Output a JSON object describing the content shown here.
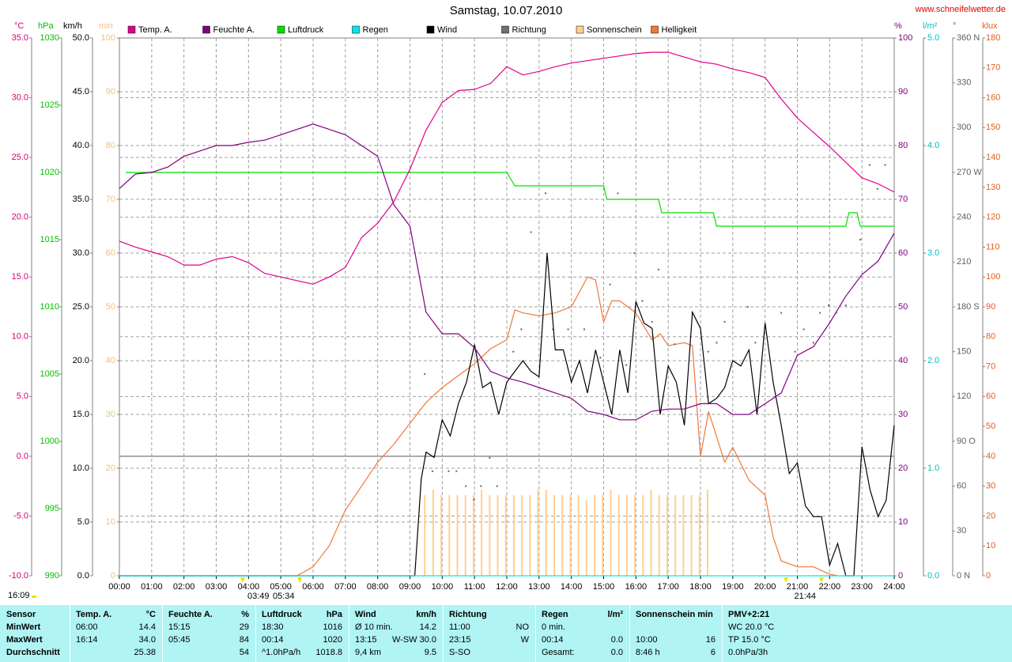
{
  "chart_data": {
    "type": "line",
    "title": "Samstag, 10.07.2010",
    "source": "www.schneifelwetter.de",
    "xlim": [
      0,
      24
    ],
    "xticks": [
      {
        "value": 0,
        "label": "00:00"
      },
      {
        "value": 1,
        "label": "01:00"
      },
      {
        "value": 2,
        "label": "02:00"
      },
      {
        "value": 3,
        "label": "03:00"
      },
      {
        "value": 4,
        "label": "04:00"
      },
      {
        "value": 5,
        "label": "05:00"
      },
      {
        "value": 6,
        "label": "06:00"
      },
      {
        "value": 7,
        "label": "07:00"
      },
      {
        "value": 8,
        "label": "08:00"
      },
      {
        "value": 9,
        "label": "09:00"
      },
      {
        "value": 10,
        "label": "10:00"
      },
      {
        "value": 11,
        "label": "11:00"
      },
      {
        "value": 12,
        "label": "12:00"
      },
      {
        "value": 13,
        "label": "13:00"
      },
      {
        "value": 14,
        "label": "14:00"
      },
      {
        "value": 15,
        "label": "15:00"
      },
      {
        "value": 16,
        "label": "16:00"
      },
      {
        "value": 17,
        "label": "17:00"
      },
      {
        "value": 18,
        "label": "18:00"
      },
      {
        "value": 19,
        "label": "19:00"
      },
      {
        "value": 20,
        "label": "20:00"
      },
      {
        "value": 21,
        "label": "21:00"
      },
      {
        "value": 22,
        "label": "22:00"
      },
      {
        "value": 23,
        "label": "23:00"
      },
      {
        "value": 24,
        "label": "24:00"
      }
    ],
    "grid": [
      "km/h",
      "°C"
    ],
    "axes": [
      {
        "name": "°C",
        "color": "#d4007a",
        "lim": [
          -10,
          35
        ],
        "ticks": [
          {
            "value": -10,
            "label": "-10.0"
          },
          {
            "value": -5,
            "label": "-5.0"
          },
          {
            "value": 0,
            "label": "0.0"
          },
          {
            "value": 5,
            "label": "5.0"
          },
          {
            "value": 10,
            "label": "10.0"
          },
          {
            "value": 15,
            "label": "15.0"
          },
          {
            "value": 20,
            "label": "20.0"
          },
          {
            "value": 25,
            "label": "25.0"
          },
          {
            "value": 30,
            "label": "30.0"
          },
          {
            "value": 35,
            "label": "35.0"
          }
        ]
      },
      {
        "name": "hPa",
        "color": "#00c000",
        "lim": [
          990,
          1030
        ],
        "ticks": [
          990,
          995,
          1000,
          1005,
          1010,
          1015,
          1020,
          1025,
          1030
        ]
      },
      {
        "name": "km/h",
        "color": "#000000",
        "lim": [
          0,
          50
        ],
        "ticks": [
          {
            "value": 0,
            "label": "0.0"
          },
          {
            "value": 5,
            "label": "5.0"
          },
          {
            "value": 10,
            "label": "10.0"
          },
          {
            "value": 15,
            "label": "15.0"
          },
          {
            "value": 20,
            "label": "20.0"
          },
          {
            "value": 25,
            "label": "25.0"
          },
          {
            "value": 30,
            "label": "30.0"
          },
          {
            "value": 35,
            "label": "35.0"
          },
          {
            "value": 40,
            "label": "40.0"
          },
          {
            "value": 45,
            "label": "45.0"
          },
          {
            "value": 50,
            "label": "50.0"
          }
        ]
      },
      {
        "name": "min",
        "color": "#f0c080",
        "lim": [
          0,
          100
        ],
        "ticks": [
          0,
          10,
          20,
          30,
          40,
          50,
          60,
          70,
          80,
          90,
          100
        ]
      },
      {
        "name": "%",
        "color": "#800080",
        "lim": [
          0,
          100
        ],
        "ticks": [
          0,
          10,
          20,
          30,
          40,
          50,
          60,
          70,
          80,
          90,
          100
        ]
      },
      {
        "name": "l/m²",
        "color": "#00c0c0",
        "lim": [
          0,
          5
        ],
        "ticks": [
          {
            "value": 0,
            "label": "0.0"
          },
          {
            "value": 1,
            "label": "1.0"
          },
          {
            "value": 2,
            "label": "2.0"
          },
          {
            "value": 3,
            "label": "3.0"
          },
          {
            "value": 4,
            "label": "4.0"
          },
          {
            "value": 5,
            "label": "5.0"
          }
        ]
      },
      {
        "name": "°",
        "color": "#606060",
        "lim": [
          0,
          360
        ],
        "ticks": [
          {
            "value": 0,
            "label": "0 N"
          },
          30,
          60,
          {
            "value": 90,
            "label": "90 O"
          },
          120,
          150,
          {
            "value": 180,
            "label": "180 S"
          },
          210,
          240,
          {
            "value": 270,
            "label": "270 W"
          },
          300,
          330,
          {
            "value": 360,
            "label": "360 N"
          }
        ]
      },
      {
        "name": "klux",
        "color": "#e06020",
        "lim": [
          0,
          180
        ],
        "ticks": [
          0,
          10,
          20,
          30,
          40,
          50,
          60,
          70,
          80,
          90,
          100,
          110,
          120,
          130,
          140,
          150,
          160,
          170,
          180
        ]
      }
    ],
    "series": [
      {
        "name": "Temp. A.",
        "type": "line",
        "axis": "°C",
        "color": "#e0008a",
        "x": [
          0,
          0.5,
          1,
          1.5,
          2,
          2.5,
          3,
          3.5,
          4,
          4.5,
          5,
          5.5,
          6,
          6.5,
          7,
          7.5,
          8,
          8.5,
          9,
          9.5,
          10,
          10.5,
          11,
          11.5,
          12,
          12.5,
          13,
          13.5,
          14,
          14.5,
          15,
          15.5,
          16,
          16.5,
          17,
          17.5,
          18,
          18.5,
          19,
          19.5,
          20,
          20.5,
          21,
          21.5,
          22,
          22.5,
          23,
          23.5,
          24
        ],
        "values": [
          18.0,
          17.5,
          17.1,
          16.7,
          16.0,
          16.0,
          16.5,
          16.7,
          16.2,
          15.3,
          15.0,
          14.7,
          14.4,
          15.0,
          15.8,
          18.3,
          19.5,
          21.3,
          24.0,
          27.3,
          29.6,
          30.6,
          30.7,
          31.2,
          32.6,
          31.9,
          32.2,
          32.6,
          32.9,
          33.1,
          33.3,
          33.5,
          33.7,
          33.8,
          33.8,
          33.4,
          33.0,
          32.8,
          32.4,
          32.1,
          31.7,
          29.9,
          28.3,
          27.1,
          25.9,
          24.6,
          23.3,
          22.8,
          22.1
        ]
      },
      {
        "name": "Feuchte A.",
        "type": "line",
        "axis": "%",
        "color": "#800080",
        "x": [
          0,
          0.5,
          1,
          1.5,
          2,
          2.5,
          3,
          3.5,
          4,
          4.5,
          5,
          5.5,
          6,
          6.5,
          7,
          7.5,
          8,
          8.5,
          9,
          9.5,
          10,
          10.5,
          11,
          11.5,
          12,
          12.5,
          13,
          13.5,
          14,
          14.5,
          15,
          15.5,
          16,
          16.5,
          17,
          17.5,
          18,
          18.5,
          19,
          19.5,
          20,
          20.5,
          21,
          21.5,
          22,
          22.5,
          23,
          23.5,
          24
        ],
        "values": [
          72,
          74.7,
          75,
          76,
          78,
          79,
          80,
          80,
          80.6,
          81,
          82,
          83,
          84,
          83,
          82,
          80,
          78,
          69,
          65,
          49,
          45,
          45,
          42.4,
          38,
          36.8,
          36,
          35,
          34,
          33,
          30.6,
          30,
          29,
          29,
          30.6,
          31,
          31,
          32,
          32,
          30,
          30,
          32,
          34,
          41,
          42.6,
          47,
          52,
          56,
          58.5,
          63.7
        ]
      },
      {
        "name": "Luftdruck",
        "type": "line",
        "axis": "hPa",
        "color": "#00e000",
        "x": [
          0.2,
          12,
          12.25,
          15,
          15.1,
          16.7,
          16.8,
          18.4,
          18.5,
          22.5,
          22.6,
          22.85,
          22.95,
          24
        ],
        "values": [
          1020,
          1020,
          1019,
          1019,
          1018,
          1018,
          1017,
          1017,
          1016,
          1016,
          1017,
          1017,
          1016,
          1016
        ]
      },
      {
        "name": "Regen",
        "type": "line",
        "axis": "l/m²",
        "color": "#00e8e8",
        "x": [
          0,
          24
        ],
        "values": [
          0,
          0
        ]
      },
      {
        "name": "Wind",
        "type": "line",
        "axis": "km/h",
        "color": "#000000",
        "x": [
          0,
          9.15,
          9.35,
          9.5,
          9.75,
          10,
          10.25,
          10.5,
          10.75,
          11,
          11.25,
          11.5,
          11.75,
          12,
          12.25,
          12.5,
          12.75,
          13,
          13.25,
          13.5,
          13.75,
          14,
          14.25,
          14.5,
          14.75,
          15,
          15.25,
          15.5,
          15.75,
          16,
          16.25,
          16.5,
          16.75,
          17,
          17.25,
          17.5,
          17.75,
          18,
          18.25,
          18.5,
          18.75,
          19,
          19.25,
          19.5,
          19.75,
          20,
          20.25,
          20.5,
          20.75,
          21,
          21.25,
          21.5,
          21.75,
          22,
          22.25,
          22.5,
          22.75,
          23,
          23.25,
          23.5,
          23.75,
          24
        ],
        "values": [
          0,
          0,
          9,
          11.5,
          11,
          14.5,
          13,
          16,
          18,
          21.5,
          17.5,
          18,
          15,
          18,
          19,
          20,
          19,
          18.5,
          30,
          21,
          21,
          18,
          20,
          17,
          21,
          18,
          15,
          21,
          17,
          25.5,
          23.5,
          23,
          15,
          19.5,
          18,
          14,
          24.5,
          23,
          16,
          16.5,
          17.5,
          20,
          19.5,
          21,
          15,
          23.5,
          18,
          14,
          9.5,
          10.5,
          6.5,
          5.5,
          5.5,
          1,
          3,
          0,
          0,
          12,
          8,
          5.5,
          7,
          14
        ]
      },
      {
        "name": "Richtung",
        "type": "scatter",
        "axis": "°",
        "color": "#707070",
        "x": [
          9.46,
          9.7,
          10.2,
          10.44,
          10.73,
          10.98,
          11.2,
          11.47,
          11.7,
          12.2,
          12.45,
          12.75,
          13.2,
          13.43,
          13.9,
          14.4,
          14.9,
          15.2,
          15.44,
          15.7,
          15.95,
          16.2,
          16.5,
          16.7,
          17.2,
          17.75,
          18.24,
          18.5,
          18.75,
          19.46,
          19.7,
          20.5,
          20.93,
          21.2,
          21.5,
          21.7,
          21.97,
          22.2,
          22.5,
          22.95,
          23.24,
          23.48,
          23.72
        ],
        "values": [
          135,
          70,
          70,
          70,
          60,
          51,
          60,
          79,
          60,
          150,
          165,
          230,
          256,
          165,
          165,
          165,
          146,
          195,
          256,
          141,
          216,
          184,
          170,
          205,
          155,
          176,
          150,
          156,
          170,
          180,
          156,
          176,
          150,
          165,
          156,
          176,
          181,
          176,
          181,
          225,
          275,
          259,
          275
        ]
      },
      {
        "name": "Sonnenschein",
        "type": "bar",
        "axis": "min",
        "color": "#ffd090",
        "x": [
          9.46,
          9.72,
          9.97,
          10.22,
          10.47,
          10.72,
          10.97,
          11.22,
          11.47,
          11.72,
          11.97,
          12.22,
          12.47,
          12.72,
          12.97,
          13.22,
          13.47,
          13.72,
          13.97,
          14.22,
          14.47,
          14.72,
          14.97,
          15.22,
          15.47,
          15.72,
          15.97,
          16.22,
          16.47,
          16.72,
          16.97,
          17.22,
          17.47,
          17.72,
          17.97,
          18.22
        ],
        "values": [
          15,
          16,
          15,
          15,
          15,
          15,
          15,
          16,
          15,
          15,
          15,
          15,
          15,
          15,
          16,
          16,
          15,
          15,
          15,
          15,
          14,
          15,
          15,
          16,
          15,
          15,
          15,
          15,
          16,
          15,
          15,
          15,
          15,
          15,
          15,
          16
        ]
      },
      {
        "name": "Helligkeit",
        "type": "line",
        "axis": "klux",
        "color": "#f07838",
        "x": [
          0,
          5.5,
          6,
          6.5,
          7,
          7.5,
          8,
          8.5,
          9,
          9.5,
          10,
          10.5,
          11,
          11.5,
          12,
          12.25,
          12.5,
          13,
          13.5,
          14,
          14.5,
          14.75,
          15,
          15.25,
          15.5,
          16,
          16.5,
          16.75,
          17,
          17.5,
          17.75,
          18,
          18.25,
          18.75,
          19,
          19.5,
          20,
          20.25,
          20.5,
          21,
          21.5,
          22,
          22.25
        ],
        "values": [
          0,
          0,
          3,
          10,
          22,
          30,
          38,
          44,
          51,
          58,
          63,
          67,
          71,
          76,
          79,
          89,
          88,
          87,
          88,
          90,
          100,
          99,
          85,
          92,
          92,
          88,
          79,
          81,
          77,
          78,
          77,
          40,
          55,
          38,
          43,
          32,
          27,
          13,
          5,
          3,
          3,
          0.5,
          0
        ]
      }
    ],
    "annotations": [
      "16:09",
      "03:49",
      "05:34",
      "21:44"
    ]
  },
  "summary": {
    "groups": [
      {
        "title": "Sensor",
        "rows": [
          [
            "MinWert"
          ],
          [
            "MaxWert"
          ],
          [
            "Durchschnitt"
          ]
        ]
      },
      {
        "title": "Temp. A.",
        "unit": "°C",
        "rows": [
          [
            "06:00",
            "14.4"
          ],
          [
            "16:14",
            "34.0"
          ],
          [
            "25.38"
          ]
        ]
      },
      {
        "title": "Feuchte A.",
        "unit": "%",
        "rows": [
          [
            "15:15",
            "29"
          ],
          [
            "05:45",
            "84"
          ],
          [
            "54"
          ]
        ]
      },
      {
        "title": "Luftdruck",
        "unit": "hPa",
        "rows": [
          [
            "18:30",
            "1016"
          ],
          [
            "00:14",
            "1020"
          ],
          [
            "^1.0hPa/h",
            "1018.8"
          ]
        ]
      },
      {
        "title": "Wind",
        "unit": "km/h",
        "rows": [
          [
            "Ø 10 min.",
            "14.2"
          ],
          [
            "13:15",
            "W-SW 30.0"
          ],
          [
            "9,4 km",
            "9.5"
          ]
        ]
      },
      {
        "title": "Richtung",
        "rows": [
          [
            "11:00",
            "NO"
          ],
          [
            "23:15",
            "W"
          ],
          [
            "S-SO"
          ]
        ]
      },
      {
        "title": "Regen",
        "unit": "l/m²",
        "rows": [
          [
            "0 min."
          ],
          [
            "00:14",
            "0.0"
          ],
          [
            "Gesamt:",
            "0.0"
          ]
        ]
      },
      {
        "title": "Sonnenschein min",
        "rows": [
          [],
          [
            "10:00",
            "16"
          ],
          [
            "8:46 h",
            "6"
          ]
        ]
      },
      {
        "title": "PMV+2:21",
        "rows": [
          [
            "WC 20.0 °C"
          ],
          [
            "TP 15.0 °C"
          ],
          [
            "0.0hPa/3h"
          ]
        ]
      }
    ]
  }
}
